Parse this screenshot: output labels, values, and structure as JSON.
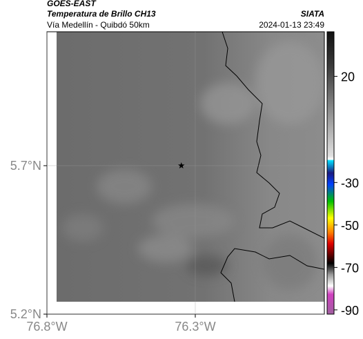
{
  "header": {
    "satellite": "GOES-EAST",
    "product": "Temperatura de Brillo CH13",
    "source": "SIATA",
    "route": "Vía Medellín - Quibdó 50km",
    "timestamp": "2024-01-13 23:49"
  },
  "map": {
    "xlim": [
      -76.8,
      -75.865
    ],
    "ylim": [
      5.2,
      6.151
    ],
    "xticks": [
      {
        "value": -76.8,
        "label": "76.8°W"
      },
      {
        "value": -76.3,
        "label": "76.3°W"
      }
    ],
    "yticks": [
      {
        "value": 5.2,
        "label": "5.2°N"
      },
      {
        "value": 5.7,
        "label": "5.7°N"
      }
    ],
    "grid": true,
    "marker": {
      "lon": -76.347,
      "lat": 5.7
    }
  },
  "colorbar": {
    "lim": [
      -92,
      41
    ],
    "ticks": [
      20,
      -30,
      -50,
      -70,
      -90
    ]
  }
}
